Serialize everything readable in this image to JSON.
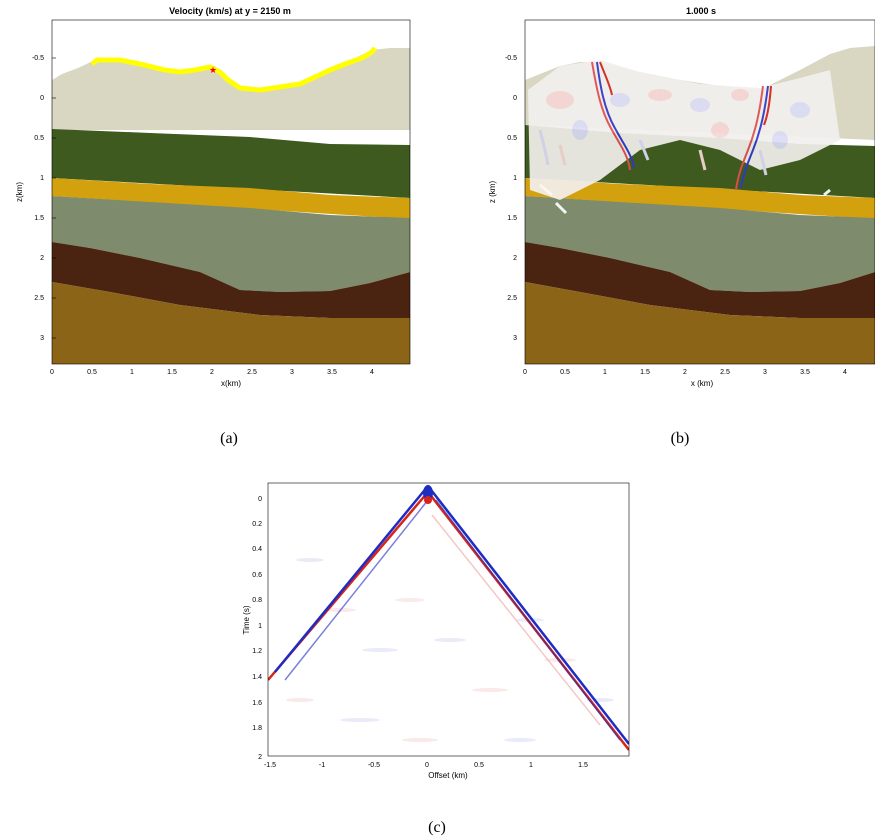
{
  "panel_a": {
    "title": "Velocity (km/s) at y = 2150 m",
    "xlabel": "x(km)",
    "ylabel": "z(km)",
    "xticks": [
      "0",
      "0.5",
      "1",
      "1.5",
      "2",
      "2.5",
      "3",
      "3.5",
      "4"
    ],
    "yticks": [
      "-0.5",
      "0",
      "0.5",
      "1",
      "1.5",
      "2",
      "2.5",
      "3"
    ],
    "caption": "(a)"
  },
  "panel_b": {
    "title": "1.000 s",
    "xlabel": "x (km)",
    "ylabel": "z (km)",
    "xticks": [
      "0",
      "0.5",
      "1",
      "1.5",
      "2",
      "2.5",
      "3",
      "3.5",
      "4"
    ],
    "yticks": [
      "-0.5",
      "0",
      "0.5",
      "1",
      "1.5",
      "2",
      "2.5",
      "3"
    ],
    "caption": "(b)"
  },
  "panel_c": {
    "xlabel": "Offset (km)",
    "ylabel": "Time (s)",
    "xticks": [
      "-1.5",
      "-1",
      "-0.5",
      "0",
      "0.5",
      "1",
      "1.5"
    ],
    "yticks": [
      "0",
      "0.2",
      "0.4",
      "0.6",
      "0.8",
      "1",
      "1.2",
      "1.4",
      "1.6",
      "1.8",
      "2"
    ],
    "caption": "(c)"
  },
  "colors": {
    "air": "#ffffff",
    "weathering": "#d9d7c2",
    "layer_green_dark": "#3e5a1e",
    "layer_gold": "#d4a10e",
    "layer_sage": "#7e8b6c",
    "layer_brown_dark": "#4a2410",
    "layer_brown": "#8b6418",
    "receivers": "#ffff00",
    "source": "#ff0000",
    "wave_red": "#d4241c",
    "wave_blue": "#1f2cc2"
  }
}
